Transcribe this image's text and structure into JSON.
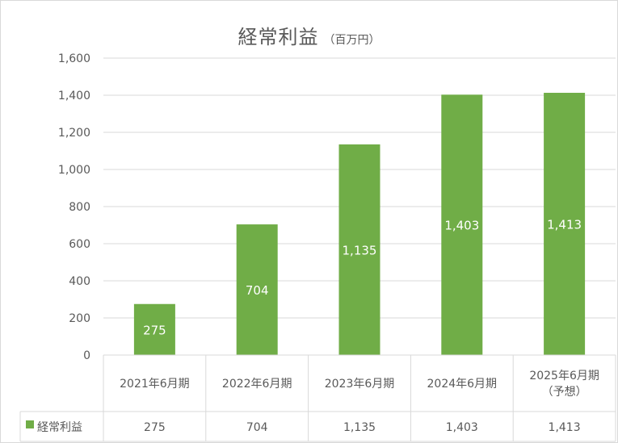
{
  "chart_data": {
    "type": "bar",
    "title": "経常利益",
    "unit": "（百万円）",
    "categories": [
      [
        "2021年6月期"
      ],
      [
        "2022年6月期"
      ],
      [
        "2023年6月期"
      ],
      [
        "2024年6月期"
      ],
      [
        "2025年6月期",
        "（予想）"
      ]
    ],
    "series": [
      {
        "name": "経常利益",
        "color": "#70ad47",
        "values": [
          275,
          704,
          1135,
          1403,
          1413
        ],
        "labels": [
          "275",
          "704",
          "1,135",
          "1,403",
          "1,413"
        ]
      }
    ],
    "yticks": [
      "0",
      "200",
      "400",
      "600",
      "800",
      "1,000",
      "1,200",
      "1,400",
      "1,600"
    ],
    "ylim": [
      0,
      1600
    ],
    "grid": true,
    "data_table": true,
    "colors": {
      "bar": "#70ad47",
      "gridline": "#d9d9d9",
      "text": "#595959"
    }
  }
}
